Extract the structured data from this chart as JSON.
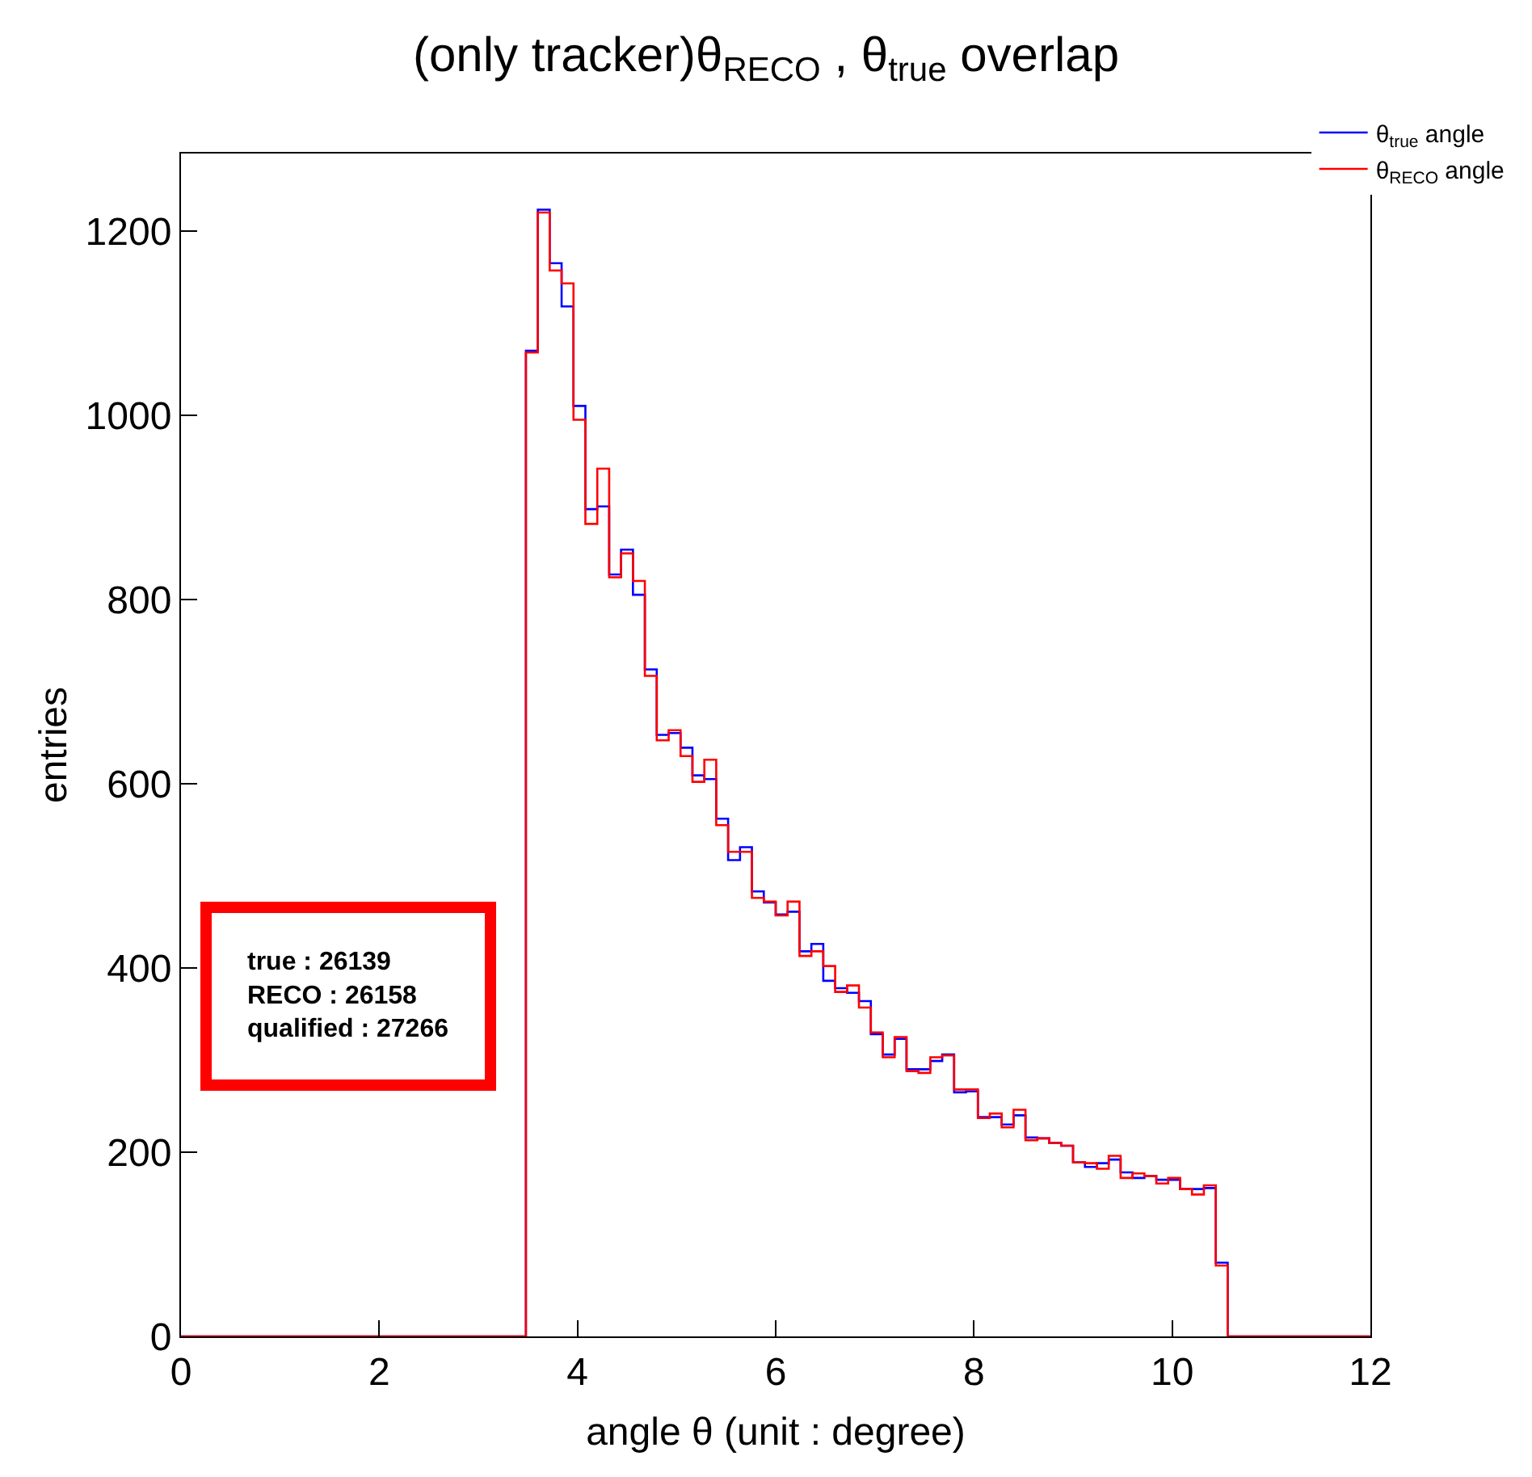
{
  "chart_data": {
    "type": "histogram",
    "title": "(only tracker)θ$_{RECO}$ , θ$_{true}$ overlap",
    "xlabel": "angle θ (unit : degree)",
    "ylabel": "entries",
    "bins": [
      0,
      0.12,
      0.24,
      0.36,
      0.48,
      0.6,
      0.72,
      0.84,
      0.96,
      1.08,
      1.2,
      1.32,
      1.44,
      1.56,
      1.68,
      1.8,
      1.92,
      2.04,
      2.16,
      2.28,
      2.4,
      2.52,
      2.64,
      2.76,
      2.88,
      3.0,
      3.12,
      3.24,
      3.36,
      3.48,
      3.6,
      3.72,
      3.84,
      3.96,
      4.08,
      4.2,
      4.32,
      4.44,
      4.56,
      4.68,
      4.8,
      4.92,
      5.04,
      5.16,
      5.28,
      5.4,
      5.52,
      5.64,
      5.76,
      5.88,
      6.0,
      6.12,
      6.24,
      6.36,
      6.48,
      6.6,
      6.72,
      6.84,
      6.96,
      7.08,
      7.2,
      7.32,
      7.44,
      7.56,
      7.68,
      7.8,
      7.92,
      8.04,
      8.16,
      8.28,
      8.4,
      8.52,
      8.64,
      8.76,
      8.88,
      9.0,
      9.12,
      9.24,
      9.36,
      9.48,
      9.6,
      9.72,
      9.84,
      9.96,
      10.08,
      10.2,
      10.32,
      10.44,
      10.56,
      10.68,
      10.8,
      10.92,
      11.04,
      11.16,
      11.28,
      11.4,
      11.52,
      11.64,
      11.76,
      11.88,
      12.0
    ],
    "series": [
      {
        "name": "θ$_{true}$ angle",
        "color": "#0000ff",
        "values": [
          0,
          0,
          0,
          0,
          0,
          0,
          0,
          0,
          0,
          0,
          0,
          0,
          0,
          0,
          0,
          0,
          0,
          0,
          0,
          0,
          0,
          0,
          0,
          0,
          0,
          0,
          0,
          0,
          0,
          1070,
          1223,
          1165,
          1118,
          1010,
          898,
          901,
          827,
          854,
          805,
          724,
          653,
          655,
          639,
          609,
          605,
          562,
          517,
          531,
          483,
          471,
          458,
          461,
          418,
          426,
          386,
          378,
          373,
          364,
          328,
          306,
          323,
          290,
          290,
          299,
          306,
          265,
          266,
          238,
          238,
          230,
          240,
          216,
          215,
          210,
          207,
          189,
          184,
          188,
          192,
          178,
          172,
          174,
          170,
          170,
          160,
          160,
          161,
          80,
          0,
          0,
          0,
          0,
          0,
          0,
          0,
          0,
          0,
          0,
          0,
          0
        ]
      },
      {
        "name": "θ$_{RECO}$ angle",
        "color": "#ff0000",
        "values": [
          0,
          0,
          0,
          0,
          0,
          0,
          0,
          0,
          0,
          0,
          0,
          0,
          0,
          0,
          0,
          0,
          0,
          0,
          0,
          0,
          0,
          0,
          0,
          0,
          0,
          0,
          0,
          0,
          0,
          1068,
          1220,
          1157,
          1143,
          995,
          882,
          942,
          824,
          850,
          820,
          717,
          647,
          658,
          630,
          602,
          626,
          555,
          526,
          526,
          476,
          472,
          457,
          472,
          413,
          418,
          402,
          374,
          381,
          357,
          330,
          303,
          325,
          288,
          286,
          303,
          305,
          268,
          268,
          237,
          242,
          227,
          246,
          213,
          215,
          210,
          207,
          189,
          188,
          182,
          196,
          172,
          177,
          174,
          166,
          172,
          160,
          154,
          164,
          77,
          0,
          0,
          0,
          0,
          0,
          0,
          0,
          0,
          0,
          0,
          0,
          0
        ]
      }
    ],
    "xlim": [
      0,
      12
    ],
    "xticks": [
      0,
      2,
      4,
      6,
      8,
      10,
      12
    ],
    "ylim": [
      0,
      1284
    ],
    "yticks": [
      0,
      200,
      400,
      600,
      800,
      1000,
      1200
    ],
    "legend": "top right",
    "annotations": [
      "true : 26139\nRECO : 26158\nqualified : 27266"
    ]
  }
}
